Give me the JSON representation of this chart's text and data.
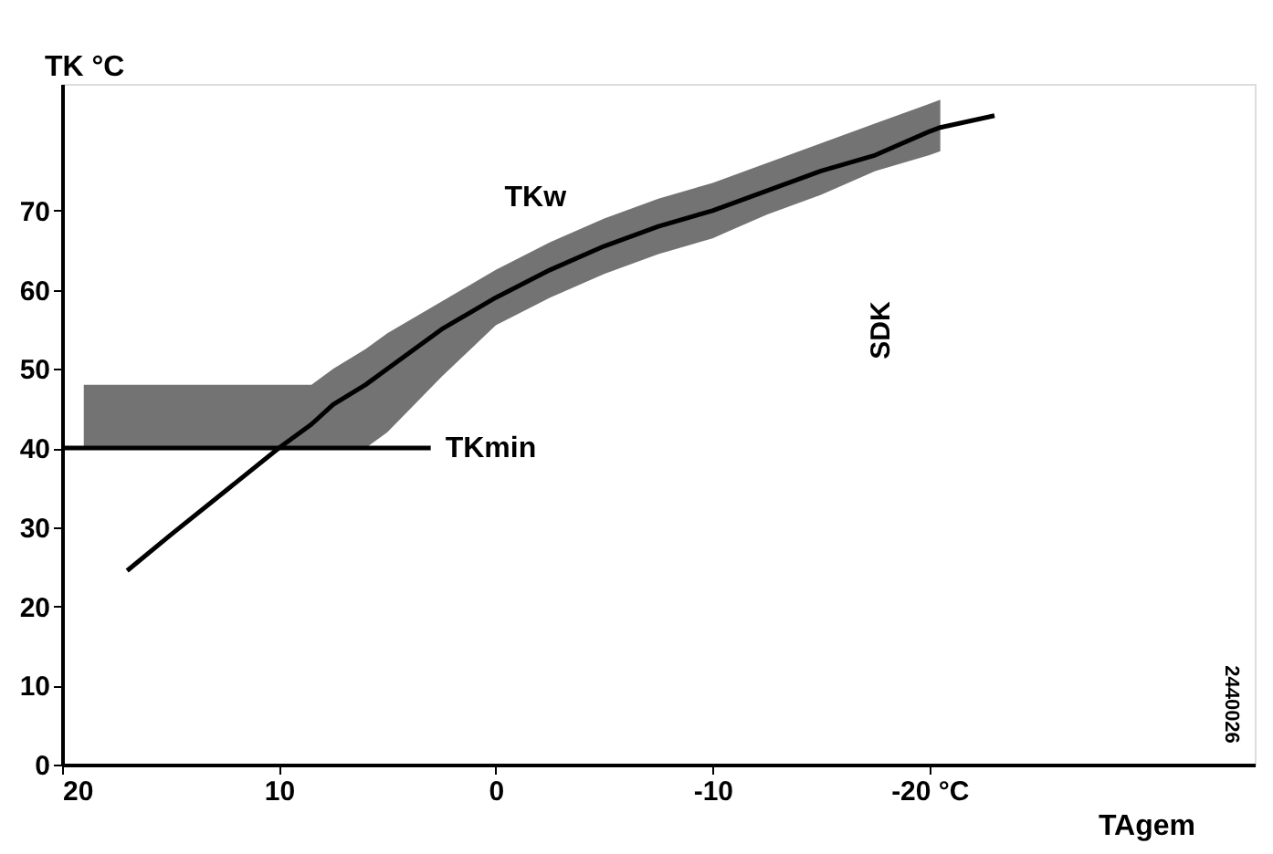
{
  "chart_data": {
    "type": "line",
    "ylabel": "TK °C",
    "xlabel": "TAgem",
    "xlim": [
      20,
      -35
    ],
    "ylim": [
      0,
      86
    ],
    "xticks": [
      20,
      10,
      0,
      -10,
      {
        "value": -20,
        "label": "-20 °C"
      }
    ],
    "yticks": [
      0,
      10,
      20,
      30,
      40,
      50,
      60,
      70
    ],
    "grid": false,
    "line_style": "solid",
    "series": [
      {
        "name": "TKw",
        "color": "#000000",
        "x": [
          19,
          17,
          15,
          12.5,
          10,
          8.5,
          7.5,
          6,
          5,
          2.5,
          0,
          -2.5,
          -5,
          -7.5,
          -10,
          -12.5,
          -15,
          -17.5,
          -20,
          -20.5,
          -23
        ],
        "values": [
          null,
          24.5,
          29,
          34.5,
          40,
          43,
          45.5,
          48,
          50,
          55,
          59,
          62.5,
          65.5,
          68,
          70,
          72.5,
          75,
          77,
          80,
          80.5,
          82
        ],
        "lower": [
          40,
          40,
          40,
          40,
          40,
          40,
          40,
          40,
          42,
          49,
          55.5,
          59,
          62,
          64.5,
          66.5,
          69.5,
          72,
          75,
          77,
          77.5,
          null
        ],
        "upper": [
          48,
          48,
          48,
          48,
          48,
          48,
          50,
          52.5,
          54.5,
          58.5,
          62.5,
          66,
          69,
          71.5,
          73.5,
          76,
          78.5,
          81,
          83.5,
          84,
          null
        ]
      },
      {
        "name": "TKmin",
        "color": "#000000",
        "x": [
          20,
          3
        ],
        "values": [
          40,
          40
        ]
      }
    ],
    "annotations": [
      "SDK",
      "2440026"
    ]
  }
}
